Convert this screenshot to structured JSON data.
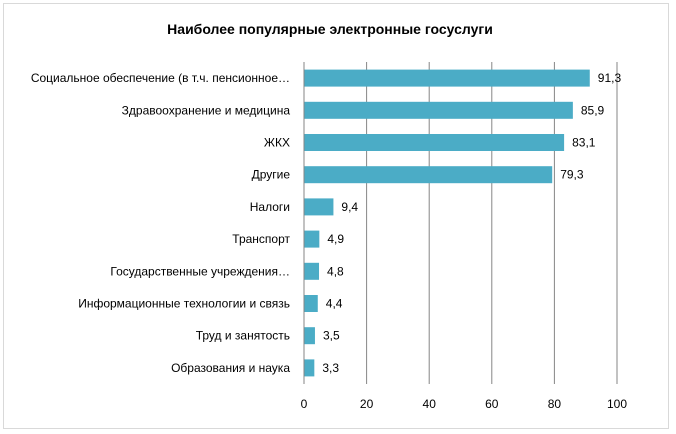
{
  "chart_data": {
    "type": "bar",
    "orientation": "horizontal",
    "title": "Наиболее популярные электронные госуслуги",
    "categories": [
      "Социальное обеспечение  (в т.ч. пенсионное…",
      "Здравоохранение и медицина",
      "ЖКХ",
      "Другие",
      "Налоги",
      "Транспорт",
      "Государственные учреждения…",
      "Информационные технологии и связь",
      "Труд и занятость",
      "Образования и наука"
    ],
    "values": [
      91.3,
      85.9,
      83.1,
      79.3,
      9.4,
      4.9,
      4.8,
      4.4,
      3.5,
      3.3
    ],
    "data_labels": [
      "91,3",
      "85,9",
      "83,1",
      "79,3",
      "9,4",
      "4,9",
      "4,8",
      "4,4",
      "3,5",
      "3,3"
    ],
    "xlim": [
      0,
      100
    ],
    "xticks": [
      0,
      20,
      40,
      60,
      80,
      100
    ],
    "grid": "vertical",
    "legend": "none",
    "bar_color": "#4bacc6"
  }
}
